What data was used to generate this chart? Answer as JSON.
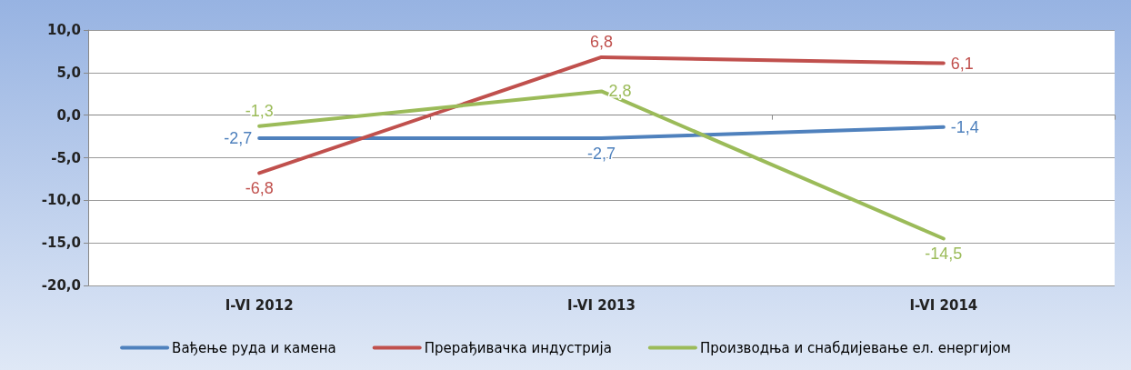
{
  "chart_data": {
    "type": "line",
    "categories": [
      "I-VI 2012",
      "I-VI 2013",
      "I-VI 2014"
    ],
    "series": [
      {
        "name": "Вађење руда и камена",
        "color": "#4f81bd",
        "values": [
          -2.7,
          -2.7,
          -1.4
        ],
        "value_labels": [
          "-2,7",
          "-2,7",
          "-1,4"
        ]
      },
      {
        "name": "Прерађивачка индустрија",
        "color": "#c0504d",
        "values": [
          -6.8,
          6.8,
          6.1
        ],
        "value_labels": [
          "-6,8",
          "6,8",
          "6,1"
        ]
      },
      {
        "name": "Производња и снабдијевање ел. енергијом",
        "color": "#9bbb59",
        "values": [
          -1.3,
          2.8,
          -14.5
        ],
        "value_labels": [
          "-1,3",
          "2,8",
          "-14,5"
        ]
      }
    ],
    "ylim": [
      -20,
      10
    ],
    "yticks": [
      {
        "value": -20,
        "label": "-20,0"
      },
      {
        "value": -15,
        "label": "-15,0"
      },
      {
        "value": -10,
        "label": "-10,0"
      },
      {
        "value": -5,
        "label": "-5,0"
      },
      {
        "value": 0,
        "label": "0,0"
      },
      {
        "value": 5,
        "label": "5,0"
      },
      {
        "value": 10,
        "label": "10,0"
      }
    ],
    "grid": "y",
    "legend": "bottom",
    "marker": "none",
    "line_style": "solid"
  }
}
